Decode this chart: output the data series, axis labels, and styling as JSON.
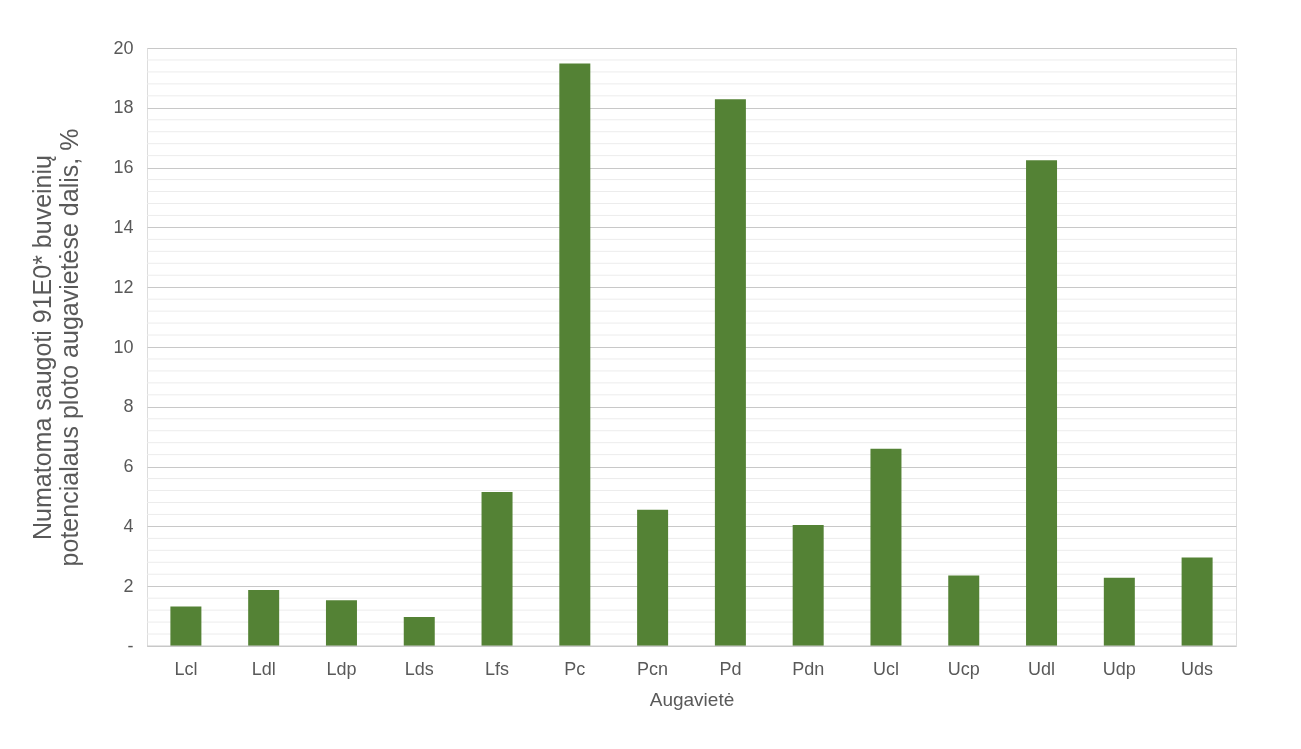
{
  "chart_data": {
    "type": "bar",
    "xlabel": "Augavietė",
    "ylabel": "Numatoma saugoti 91E0* buveinių\npotencialaus ploto augavietėse dalis, %",
    "categories": [
      "Lcl",
      "Ldl",
      "Ldp",
      "Lds",
      "Lfs",
      "Pc",
      "Pcn",
      "Pd",
      "Pdn",
      "Ucl",
      "Ucp",
      "Udl",
      "Udp",
      "Uds"
    ],
    "values": [
      1.32,
      1.87,
      1.53,
      0.97,
      5.15,
      19.48,
      4.56,
      18.29,
      4.05,
      6.6,
      2.36,
      16.25,
      2.28,
      2.96
    ],
    "color": "#548235",
    "ylim": [
      0,
      20
    ],
    "yticks": [
      {
        "value": 0,
        "label": "-"
      },
      {
        "value": 0.4,
        "label": null
      },
      {
        "value": 0.8,
        "label": null
      },
      {
        "value": 1.2,
        "label": null
      },
      {
        "value": 1.6,
        "label": null
      },
      2,
      {
        "value": 2.4,
        "label": null
      },
      {
        "value": 2.8,
        "label": null
      },
      {
        "value": 3.2,
        "label": null
      },
      {
        "value": 3.6,
        "label": null
      },
      4,
      {
        "value": 4.4,
        "label": null
      },
      {
        "value": 4.8,
        "label": null
      },
      {
        "value": 5.2,
        "label": null
      },
      {
        "value": 5.6,
        "label": null
      },
      6,
      {
        "value": 6.4,
        "label": null
      },
      {
        "value": 6.8,
        "label": null
      },
      {
        "value": 7.2,
        "label": null
      },
      {
        "value": 7.6,
        "label": null
      },
      8,
      {
        "value": 8.4,
        "label": null
      },
      {
        "value": 8.8,
        "label": null
      },
      {
        "value": 9.2,
        "label": null
      },
      {
        "value": 9.6,
        "label": null
      },
      10,
      {
        "value": 10.4,
        "label": null
      },
      {
        "value": 10.8,
        "label": null
      },
      {
        "value": 11.2,
        "label": null
      },
      {
        "value": 11.6,
        "label": null
      },
      12,
      {
        "value": 12.4,
        "label": null
      },
      {
        "value": 12.8,
        "label": null
      },
      {
        "value": 13.2,
        "label": null
      },
      {
        "value": 13.6,
        "label": null
      },
      14,
      {
        "value": 14.4,
        "label": null
      },
      {
        "value": 14.8,
        "label": null
      },
      {
        "value": 15.2,
        "label": null
      },
      {
        "value": 15.6,
        "label": null
      },
      16,
      {
        "value": 16.4,
        "label": null
      },
      {
        "value": 16.8,
        "label": null
      },
      {
        "value": 17.2,
        "label": null
      },
      {
        "value": 17.6,
        "label": null
      },
      18,
      {
        "value": 18.4,
        "label": null
      },
      {
        "value": 18.8,
        "label": null
      },
      {
        "value": 19.2,
        "label": null
      },
      {
        "value": 19.6,
        "label": null
      },
      20
    ],
    "grid": "y"
  }
}
